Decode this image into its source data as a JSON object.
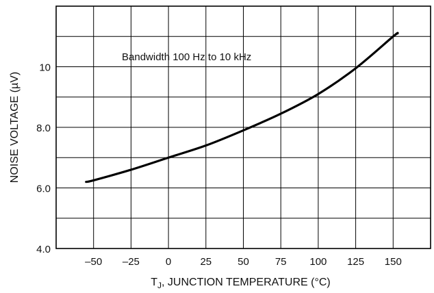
{
  "chart_data": {
    "type": "line",
    "xlabel": {
      "main": "T",
      "sub": "J",
      "rest": ", JUNCTION TEMPERATURE (°C)"
    },
    "ylabel": "NOISE VOLTAGE (µV)",
    "annotation": "Bandwidth 100 Hz to 10 kHz",
    "xlim": [
      -75,
      175
    ],
    "ylim": [
      4.0,
      12.0
    ],
    "x_ticks": [
      -50,
      -25,
      0,
      25,
      50,
      75,
      100,
      125,
      150
    ],
    "x_tick_labels": [
      "–50",
      "–25",
      "0",
      "25",
      "50",
      "75",
      "100",
      "125",
      "150"
    ],
    "y_ticks": [
      4.0,
      6.0,
      8.0,
      10.0
    ],
    "y_tick_labels": [
      "4.0",
      "6.0",
      "8.0",
      "10"
    ],
    "y_grid_step": 1.0,
    "grid": true,
    "line_color": "#000000",
    "series": [
      {
        "x": [
          -55,
          -50,
          -25,
          0,
          25,
          50,
          75,
          100,
          125,
          150,
          153
        ],
        "y": [
          6.2,
          6.25,
          6.6,
          7.0,
          7.4,
          7.9,
          8.45,
          9.1,
          9.95,
          11.0,
          11.1
        ]
      }
    ]
  }
}
